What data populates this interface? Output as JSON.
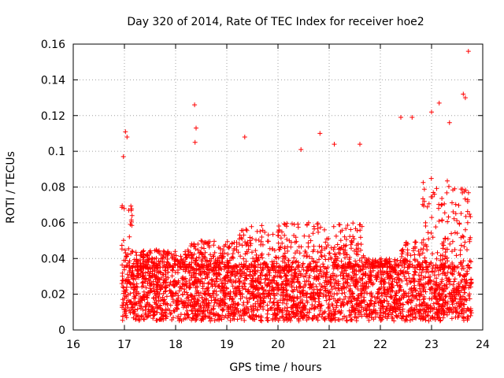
{
  "chart_data": {
    "type": "scatter",
    "title": "Day 320 of 2014, Rate Of TEC Index for receiver hoe2",
    "xlabel": "GPS time / hours",
    "ylabel": "ROTI / TECUs",
    "xlim": [
      16,
      24
    ],
    "ylim": [
      0,
      0.16
    ],
    "x_ticks": [
      16,
      17,
      18,
      19,
      20,
      21,
      22,
      23,
      24
    ],
    "x_tick_labels": [
      "16",
      "17",
      "18",
      "19",
      "20",
      "21",
      "22",
      "23",
      "24"
    ],
    "y_ticks": [
      0,
      0.02,
      0.04,
      0.06,
      0.08,
      0.1,
      0.12,
      0.14,
      0.16
    ],
    "y_tick_labels": [
      "0",
      "0.02",
      "0.04",
      "0.06",
      "0.08",
      "0.1",
      "0.12",
      "0.14",
      "0.16"
    ],
    "grid": true,
    "marker": "+",
    "color": "#ff0000",
    "series": [
      {
        "name": "hoe2",
        "x_range": [
          16.95,
          23.78
        ],
        "typical_range": [
          0.005,
          0.035
        ],
        "notable_points": [
          {
            "x": 17.02,
            "y": 0.111
          },
          {
            "x": 17.05,
            "y": 0.108
          },
          {
            "x": 16.98,
            "y": 0.097
          },
          {
            "x": 18.37,
            "y": 0.126
          },
          {
            "x": 18.4,
            "y": 0.113
          },
          {
            "x": 18.38,
            "y": 0.105
          },
          {
            "x": 19.35,
            "y": 0.108
          },
          {
            "x": 20.45,
            "y": 0.101
          },
          {
            "x": 20.82,
            "y": 0.11
          },
          {
            "x": 21.1,
            "y": 0.104
          },
          {
            "x": 21.6,
            "y": 0.104
          },
          {
            "x": 22.4,
            "y": 0.119
          },
          {
            "x": 22.62,
            "y": 0.119
          },
          {
            "x": 23.0,
            "y": 0.122
          },
          {
            "x": 23.15,
            "y": 0.127
          },
          {
            "x": 23.35,
            "y": 0.116
          },
          {
            "x": 23.62,
            "y": 0.132
          },
          {
            "x": 23.66,
            "y": 0.13
          },
          {
            "x": 23.72,
            "y": 0.156
          }
        ]
      }
    ]
  }
}
